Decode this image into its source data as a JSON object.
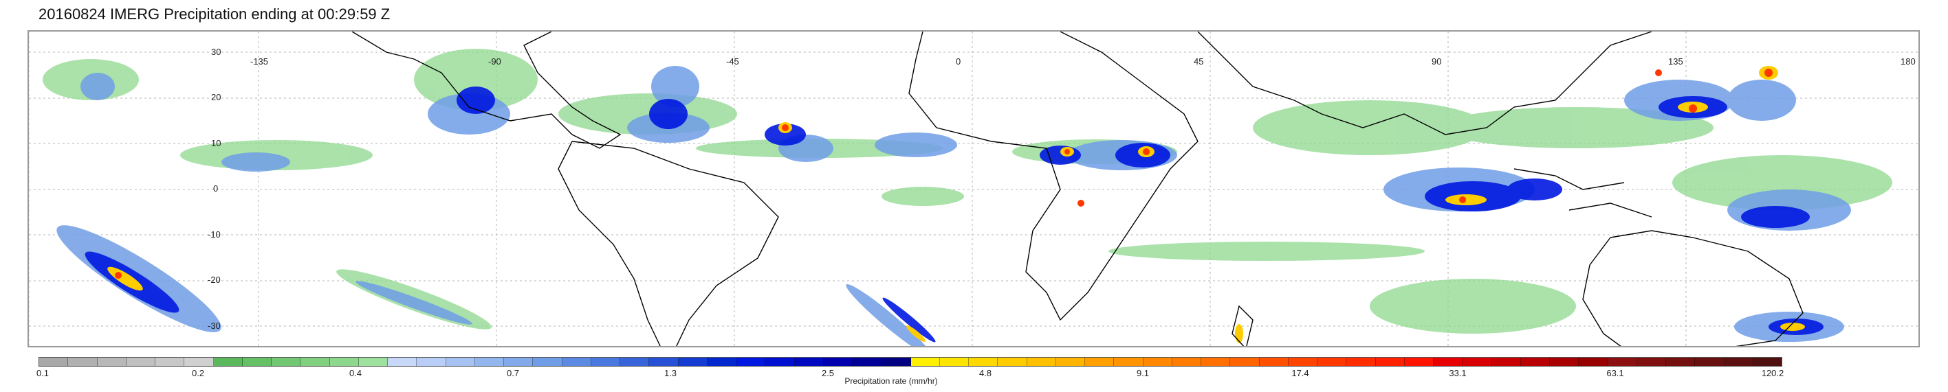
{
  "title": "20160824 IMERG Precipitation ending at 00:29:59 Z",
  "map": {
    "lon_labels": [
      "-135",
      "-90",
      "-45",
      "0",
      "45",
      "90",
      "135",
      "180"
    ],
    "lat_labels": [
      "30",
      "20",
      "10",
      "0",
      "-10",
      "-20",
      "-30"
    ],
    "coastline_color": "#000000",
    "graticule_color": "#b5b5b5",
    "background_color": "#ffffff"
  },
  "colorbar": {
    "caption": "Precipitation rate (mm/hr)",
    "tick_labels": [
      "0.1",
      "0.2",
      "0.4",
      "0.7",
      "1.3",
      "2.5",
      "4.8",
      "9.1",
      "17.4",
      "33.1",
      "63.1",
      "120.2"
    ],
    "colors": [
      "#a8a8a8",
      "#b0b0b0",
      "#b8b8b8",
      "#c0c0c0",
      "#c8c8c8",
      "#d0d0d0",
      "#5cb85c",
      "#66c066",
      "#72c872",
      "#80d080",
      "#8ed88e",
      "#9ee09e",
      "#c8d8f8",
      "#b8cef6",
      "#a6c2f2",
      "#94b6ee",
      "#82aaea",
      "#709ee6",
      "#5c8ae2",
      "#4a78de",
      "#3864da",
      "#2650d6",
      "#143cd2",
      "#0028ce",
      "#0018e0",
      "#0010d0",
      "#0008c0",
      "#0000b0",
      "#000098",
      "#000080",
      "#fff000",
      "#ffe400",
      "#ffd800",
      "#ffcc00",
      "#ffc000",
      "#ffb400",
      "#ffa000",
      "#ff9400",
      "#ff8800",
      "#ff7c00",
      "#ff7000",
      "#ff6400",
      "#ff5000",
      "#ff4400",
      "#ff3800",
      "#ff2c00",
      "#ff2000",
      "#ff1400",
      "#e80000",
      "#d80000",
      "#c80000",
      "#b80000",
      "#a80000",
      "#980000",
      "#8c1010",
      "#801010",
      "#741010",
      "#681010",
      "#5c1010",
      "#501010"
    ]
  }
}
